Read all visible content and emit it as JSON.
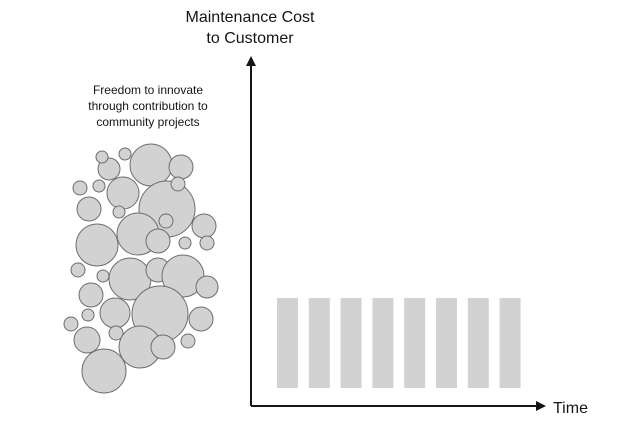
{
  "y_axis": {
    "title": "Maintenance Cost\nto Customer"
  },
  "x_axis": {
    "title": "Time"
  },
  "freedom_label": "Freedom to innovate\nthrough contribution to\ncommunity projects",
  "maintenance_bars": {
    "count": 8
  },
  "colors": {
    "axis": "#151515",
    "bubble_fill": "#d2d2d2",
    "bubble_stroke": "#6a6e73",
    "bar_fill": "#d2d2d2",
    "text": "#151515"
  }
}
